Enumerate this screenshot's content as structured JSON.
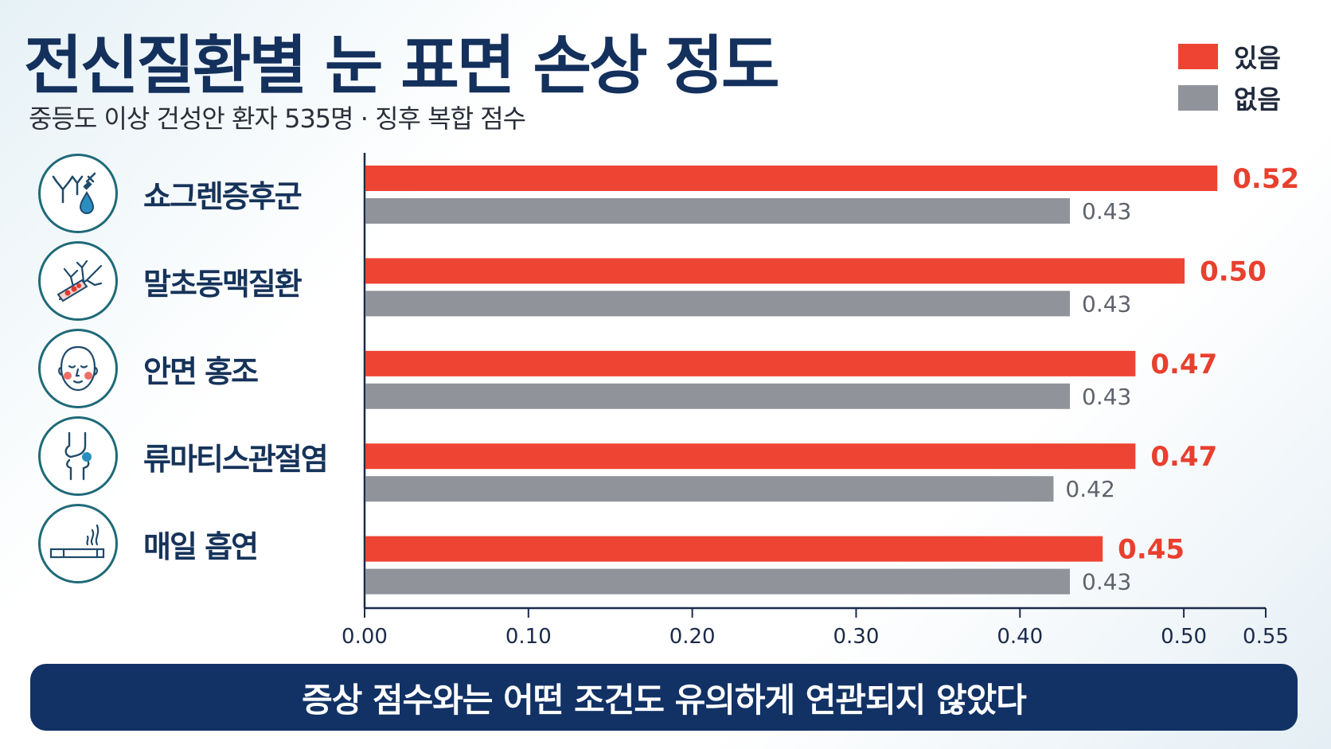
{
  "header": {
    "title": "전신질환별 눈 표면 손상 정도",
    "subtitle": "중등도 이상 건성안 환자 535명 · 징후 복합 점수"
  },
  "legend": [
    {
      "label": "있음",
      "color": "#ee4433"
    },
    {
      "label": "없음",
      "color": "#909399"
    }
  ],
  "conditions": [
    {
      "label": "쇼그렌증후군",
      "icon": "antibody-eye-drop-icon"
    },
    {
      "label": "말초동맥질환",
      "icon": "blood-vessel-icon"
    },
    {
      "label": "안면 홍조",
      "icon": "flushed-face-icon"
    },
    {
      "label": "류마티스관절염",
      "icon": "knee-joint-icon"
    },
    {
      "label": "매일 흡연",
      "icon": "cigarette-icon"
    }
  ],
  "chart_data": {
    "type": "bar",
    "orientation": "horizontal",
    "categories": [
      "쇼그렌증후군",
      "말초동맥질환",
      "안면 홍조",
      "류마티스관절염",
      "매일 흡연"
    ],
    "series": [
      {
        "name": "있음",
        "color": "#ee4433",
        "values": [
          0.52,
          0.5,
          0.47,
          0.47,
          0.45
        ],
        "labels": [
          "0.52",
          "0.50",
          "0.47",
          "0.47",
          "0.45"
        ]
      },
      {
        "name": "없음",
        "color": "#909399",
        "values": [
          0.43,
          0.43,
          0.43,
          0.42,
          0.43
        ],
        "labels": [
          "0.43",
          "0.43",
          "0.43",
          "0.42",
          "0.43"
        ]
      }
    ],
    "xlim": [
      0,
      0.55
    ],
    "ticks": [
      0,
      0.1,
      0.2,
      0.3,
      0.4,
      0.5,
      0.55
    ],
    "tick_labels": [
      "0.00",
      "0.10",
      "0.20",
      "0.30",
      "0.40",
      "0.50",
      "0.55"
    ],
    "grid": false,
    "legend_position": "top-right"
  },
  "footer": {
    "note": "증상 점수와는 어떤 조건도 유의하게 연관되지 않았다"
  }
}
